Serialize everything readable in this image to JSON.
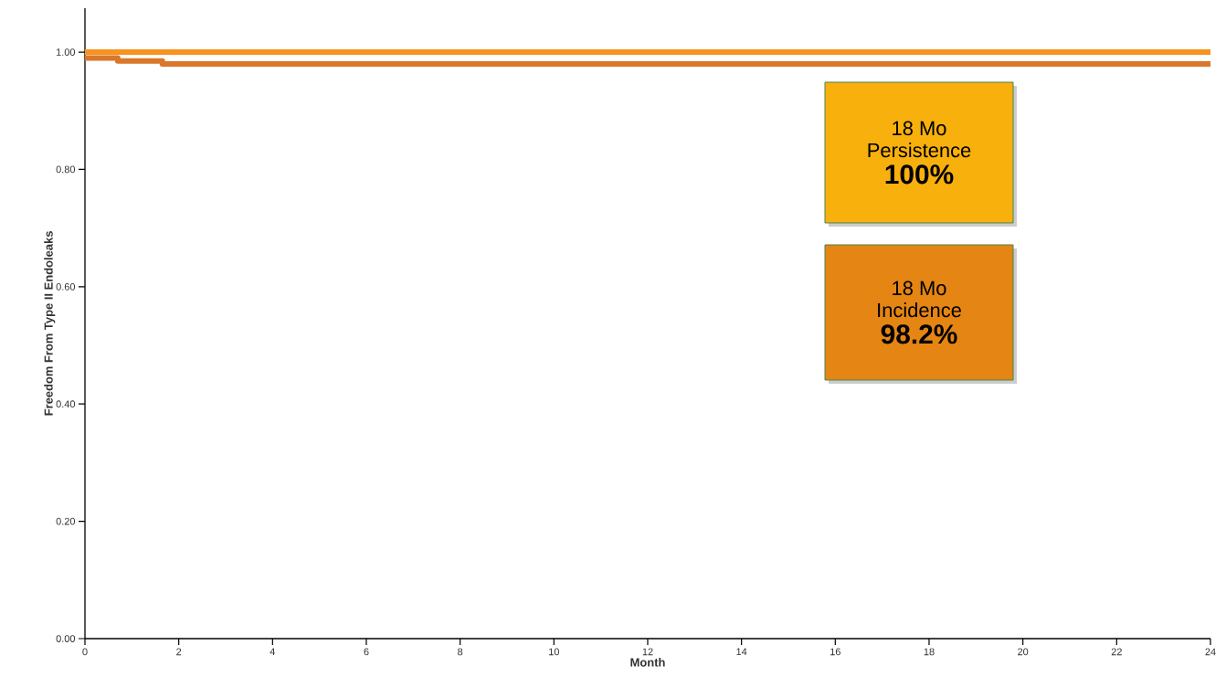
{
  "chart_data": {
    "type": "step",
    "xlabel": "Month",
    "ylabel": "Freedom From Type II Endoleaks",
    "series": [
      {
        "color": "#f7931e",
        "x": [
          0,
          24
        ],
        "values": [
          1.0,
          1.0
        ]
      },
      {
        "color": "#d9772b",
        "x": [
          0,
          0.7,
          1.65,
          24
        ],
        "values": [
          0.99,
          0.985,
          0.98,
          0.98
        ]
      }
    ],
    "xlim": [
      0,
      24
    ],
    "ylim": [
      0,
      1.075
    ],
    "xticks": [
      0,
      2,
      4,
      6,
      8,
      10,
      12,
      14,
      16,
      18,
      20,
      22,
      24
    ],
    "yticks": [
      {
        "value": 0,
        "label": "0.00"
      },
      {
        "value": 0.2,
        "label": "0.20"
      },
      {
        "value": 0.4,
        "label": "0.40"
      },
      {
        "value": 0.6,
        "label": "0.60"
      },
      {
        "value": 0.8,
        "label": "0.80"
      },
      {
        "value": 1.0,
        "label": "1.00"
      }
    ],
    "grid": false,
    "annotations": [
      "18 Mo",
      "Persistence",
      "100%",
      "18 Mo",
      "Incidence",
      "98.2%"
    ]
  }
}
